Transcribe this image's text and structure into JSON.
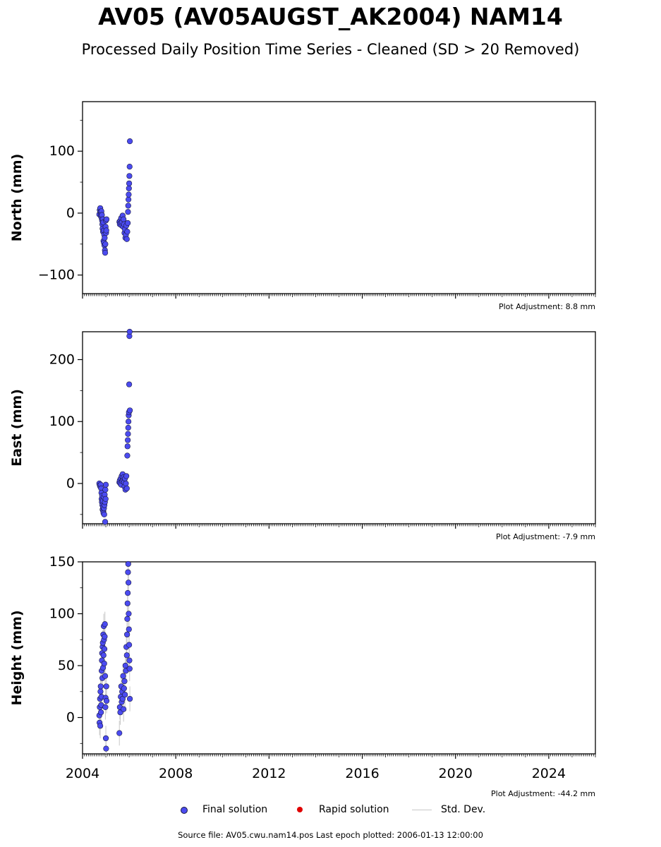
{
  "title": "AV05 (AV05AUGST_AK2004) NAM14",
  "subtitle": "Processed Daily Position Time Series - Cleaned (SD > 20 Removed)",
  "legend": {
    "final": "Final solution",
    "rapid": "Rapid solution",
    "std": "Std. Dev."
  },
  "source": "Source file: AV05.cwu.nam14.pos  Last epoch plotted: 2006-01-13 12:00:00",
  "colors": {
    "final": "#4b4bf0",
    "rapid": "#e00000",
    "std": "#c8c8c8",
    "edge": "#1a1a40"
  },
  "chart_data": [
    {
      "type": "scatter",
      "ylabel": "North (mm)",
      "adjustment": "Plot Adjustment: 8.8 mm",
      "xlim": [
        2004.0,
        2026.0
      ],
      "ylim": [
        -130,
        180
      ],
      "yticks": [
        -100,
        0,
        100
      ],
      "ytick_labels": [
        "−100",
        "0",
        "100"
      ],
      "x": [
        2004.72,
        2004.74,
        2004.76,
        2004.77,
        2004.79,
        2004.8,
        2004.81,
        2004.82,
        2004.83,
        2004.84,
        2004.85,
        2004.86,
        2004.87,
        2004.88,
        2004.89,
        2004.9,
        2004.91,
        2004.92,
        2004.93,
        2004.94,
        2004.95,
        2004.96,
        2004.97,
        2004.98,
        2004.99,
        2005.0,
        2005.01,
        2005.02,
        2005.03,
        2005.58,
        2005.6,
        2005.62,
        2005.64,
        2005.66,
        2005.68,
        2005.7,
        2005.72,
        2005.74,
        2005.76,
        2005.78,
        2005.8,
        2005.82,
        2005.84,
        2005.86,
        2005.88,
        2005.9,
        2005.92,
        2005.94,
        2005.95,
        2005.96,
        2005.97,
        2005.98,
        2005.99,
        2006.0,
        2006.01,
        2006.02,
        2006.03
      ],
      "y": [
        -2,
        5,
        8,
        2,
        -5,
        0,
        3,
        -8,
        -3,
        -12,
        -18,
        -25,
        -10,
        -30,
        -15,
        -45,
        -28,
        -48,
        -35,
        -52,
        -40,
        -60,
        -64,
        -50,
        -22,
        -12,
        -32,
        -28,
        -10,
        -14,
        -18,
        -12,
        -16,
        -8,
        -20,
        -14,
        -4,
        -22,
        -10,
        -18,
        -32,
        -26,
        -40,
        -35,
        -20,
        -42,
        -30,
        -16,
        2,
        12,
        22,
        30,
        40,
        48,
        60,
        75,
        116
      ],
      "x_ticks": [
        2004,
        2008,
        2012,
        2016,
        2020,
        2024
      ],
      "x_tick_labels": [
        "2004",
        "2008",
        "2012",
        "2016",
        "2020",
        "2024"
      ]
    },
    {
      "type": "scatter",
      "ylabel": "East (mm)",
      "adjustment": "Plot Adjustment: -7.9 mm",
      "xlim": [
        2004.0,
        2026.0
      ],
      "ylim": [
        -65,
        245
      ],
      "yticks": [
        0,
        100,
        200
      ],
      "ytick_labels": [
        "0",
        "100",
        "200"
      ],
      "x": [
        2004.72,
        2004.74,
        2004.76,
        2004.78,
        2004.8,
        2004.81,
        2004.82,
        2004.83,
        2004.84,
        2004.85,
        2004.86,
        2004.87,
        2004.88,
        2004.89,
        2004.9,
        2004.91,
        2004.92,
        2004.93,
        2004.94,
        2004.95,
        2004.96,
        2004.97,
        2004.98,
        2004.99,
        2005.0,
        2005.58,
        2005.6,
        2005.62,
        2005.64,
        2005.66,
        2005.68,
        2005.7,
        2005.72,
        2005.74,
        2005.76,
        2005.78,
        2005.8,
        2005.82,
        2005.84,
        2005.86,
        2005.88,
        2005.9,
        2005.92,
        2005.93,
        2005.94,
        2005.95,
        2005.96,
        2005.97,
        2005.98,
        2005.99,
        2006.0,
        2006.01,
        2006.02,
        2006.03
      ],
      "y": [
        0,
        -3,
        -5,
        -2,
        -8,
        -15,
        -25,
        -30,
        -20,
        -35,
        -42,
        -28,
        -38,
        -45,
        -48,
        -22,
        -40,
        -50,
        -35,
        -18,
        -30,
        -62,
        -10,
        -25,
        -2,
        2,
        5,
        0,
        8,
        -2,
        12,
        4,
        15,
        6,
        10,
        2,
        -5,
        8,
        -10,
        0,
        12,
        -8,
        45,
        60,
        70,
        80,
        90,
        100,
        110,
        115,
        160,
        238,
        245,
        118
      ],
      "x_ticks": [
        2004,
        2008,
        2012,
        2016,
        2020,
        2024
      ],
      "x_tick_labels": [
        "2004",
        "2008",
        "2012",
        "2016",
        "2020",
        "2024"
      ]
    },
    {
      "type": "scatter",
      "ylabel": "Height (mm)",
      "adjustment": "Plot Adjustment: -44.2 mm",
      "xlim": [
        2004.0,
        2026.0
      ],
      "ylim": [
        -35,
        150
      ],
      "yticks": [
        0,
        50,
        100,
        150
      ],
      "ytick_labels": [
        "0",
        "50",
        "100",
        "150"
      ],
      "x": [
        2004.72,
        2004.73,
        2004.74,
        2004.75,
        2004.76,
        2004.77,
        2004.78,
        2004.79,
        2004.8,
        2004.81,
        2004.82,
        2004.83,
        2004.84,
        2004.85,
        2004.86,
        2004.87,
        2004.88,
        2004.89,
        2004.9,
        2004.91,
        2004.92,
        2004.93,
        2004.94,
        2004.95,
        2004.96,
        2004.97,
        2004.98,
        2004.99,
        2005.0,
        2005.01,
        2005.02,
        2005.03,
        2005.58,
        2005.6,
        2005.62,
        2005.64,
        2005.66,
        2005.68,
        2005.7,
        2005.72,
        2005.74,
        2005.76,
        2005.78,
        2005.8,
        2005.82,
        2005.84,
        2005.86,
        2005.88,
        2005.9,
        2005.91,
        2005.92,
        2005.93,
        2005.94,
        2005.95,
        2005.96,
        2005.97,
        2005.98,
        2005.99,
        2006.0,
        2006.01,
        2006.02,
        2006.03
      ],
      "y": [
        2,
        -5,
        10,
        18,
        -8,
        25,
        30,
        5,
        12,
        20,
        45,
        55,
        62,
        38,
        68,
        72,
        48,
        80,
        60,
        88,
        75,
        52,
        66,
        78,
        90,
        40,
        10,
        19,
        -20,
        -30,
        30,
        16,
        -15,
        10,
        5,
        20,
        30,
        15,
        25,
        18,
        40,
        8,
        28,
        35,
        22,
        50,
        45,
        68,
        60,
        80,
        95,
        110,
        120,
        140,
        148,
        130,
        100,
        85,
        70,
        55,
        47,
        18
      ],
      "x_ticks": [
        2004,
        2008,
        2012,
        2016,
        2020,
        2024
      ],
      "x_tick_labels": [
        "2004",
        "2008",
        "2012",
        "2016",
        "2020",
        "2024"
      ]
    }
  ]
}
